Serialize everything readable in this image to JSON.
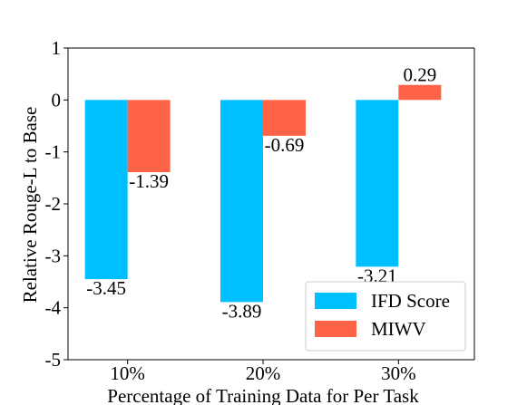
{
  "chart_data": {
    "type": "bar",
    "categories": [
      "10%",
      "20%",
      "30%"
    ],
    "series": [
      {
        "name": "IFD Score",
        "values": [
          -3.45,
          -3.89,
          -3.21
        ],
        "color": "#00bfff"
      },
      {
        "name": "MIWV",
        "values": [
          -1.39,
          -0.69,
          0.29
        ],
        "color": "#ff6347"
      }
    ],
    "data_labels": [
      [
        "-3.45",
        "-3.89",
        "-3.21"
      ],
      [
        "-1.39",
        "-0.69",
        "0.29"
      ]
    ],
    "xlabel": "Percentage of Training Data for Per Task",
    "ylabel": "Relative Rouge-L to Base",
    "ylim": [
      -5,
      1
    ],
    "yticks": [
      1,
      0,
      -1,
      -2,
      -3,
      -4,
      -5
    ],
    "grid": false,
    "legend_position": "lower-right"
  }
}
